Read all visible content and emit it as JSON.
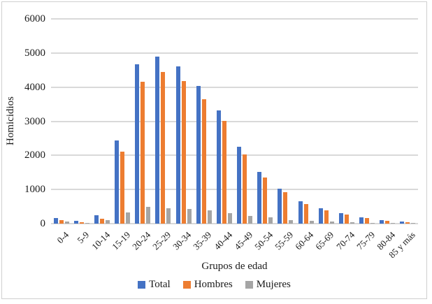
{
  "chart_data": {
    "type": "bar",
    "title": "",
    "xlabel": "Grupos de edad",
    "ylabel": "Homicidios",
    "ylim": [
      0,
      6000
    ],
    "yticks": [
      0,
      1000,
      2000,
      3000,
      4000,
      5000,
      6000
    ],
    "grid": true,
    "legend_position": "bottom",
    "gridline_color": "#d9d9d9",
    "frame_border_color": "#cfcfcf",
    "categories": [
      "0-4",
      "5-9",
      "10-14",
      "15-19",
      "20-24",
      "25-29",
      "30-34",
      "35-39",
      "40-44",
      "45-49",
      "50-54",
      "55-59",
      "60-64",
      "65-69",
      "70-74",
      "75-79",
      "80-84",
      "85 y más"
    ],
    "series": [
      {
        "name": "Total",
        "color": "#4472C4",
        "values": [
          170,
          80,
          245,
          2430,
          4660,
          4900,
          4600,
          4030,
          3310,
          2250,
          1520,
          1020,
          655,
          450,
          300,
          185,
          100,
          60
        ]
      },
      {
        "name": "Hombres",
        "color": "#ED7D31",
        "values": [
          105,
          50,
          150,
          2100,
          4160,
          4450,
          4180,
          3640,
          3010,
          2030,
          1345,
          915,
          575,
          395,
          265,
          160,
          85,
          50
        ]
      },
      {
        "name": "Mujeres",
        "color": "#A5A5A5",
        "values": [
          65,
          30,
          95,
          330,
          500,
          450,
          420,
          390,
          300,
          220,
          175,
          105,
          80,
          55,
          35,
          25,
          15,
          10
        ]
      }
    ]
  }
}
